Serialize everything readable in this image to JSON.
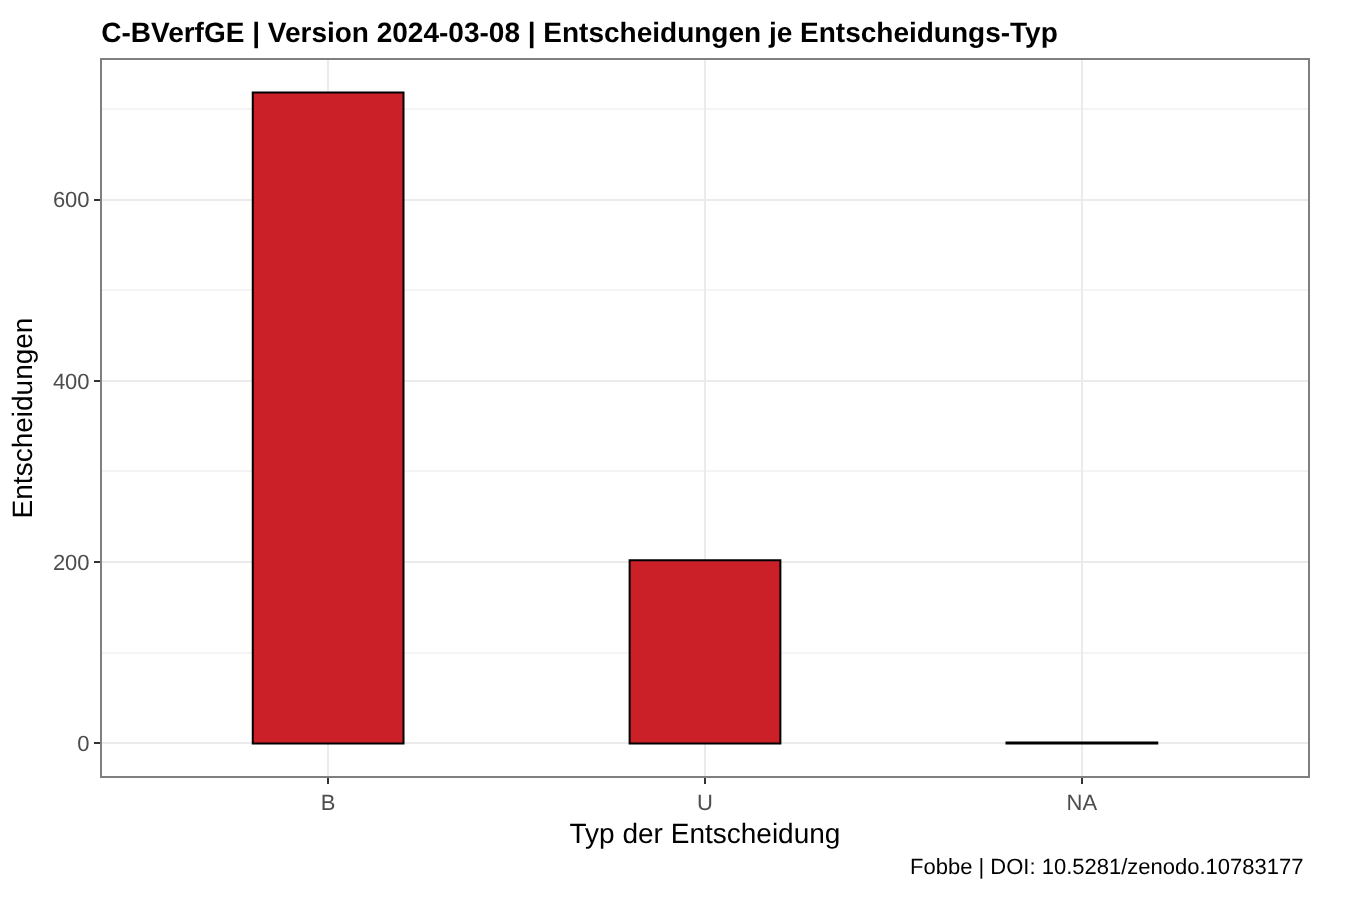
{
  "chart_data": {
    "type": "bar",
    "title": "C-BVerfGE | Version 2024-03-08 | Entscheidungen je Entscheidungs-Typ",
    "xlabel": "Typ der Entscheidung",
    "ylabel": "Entscheidungen",
    "categories": [
      "B",
      "U",
      "NA"
    ],
    "values": [
      718,
      202,
      1
    ],
    "color": "#cb2027",
    "ylim": [
      -36,
      754
    ],
    "yticks": [
      0,
      200,
      400,
      600
    ],
    "grid": true,
    "annotations": [
      "Fobbe | DOI: 10.5281/zenodo.10783177"
    ]
  }
}
